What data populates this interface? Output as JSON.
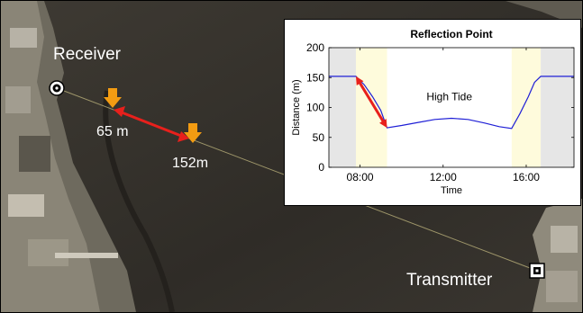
{
  "map": {
    "receiver_label": "Receiver",
    "transmitter_label": "Transmitter",
    "near_distance_label": "65 m",
    "far_distance_label": "152m",
    "arrow_color": "#e8201c",
    "marker_color": "#f39c12"
  },
  "chart_data": {
    "type": "line",
    "title": "Reflection Point",
    "xlabel": "Time",
    "ylabel": "Distance (m)",
    "annotation": "High Tide",
    "xlim": [
      6.5,
      18.3
    ],
    "ylim": [
      0,
      200
    ],
    "x_ticks": [
      8,
      12,
      16
    ],
    "x_tick_labels": [
      "08:00",
      "12:00",
      "16:00"
    ],
    "y_ticks": [
      0,
      50,
      100,
      150,
      200
    ],
    "y_tick_labels": [
      "0",
      "50",
      "100",
      "150",
      "200"
    ],
    "grid": false,
    "line_color": "#1f1fd6",
    "regions": [
      {
        "from": 6.5,
        "to": 7.8,
        "color": "#e6e6e6"
      },
      {
        "from": 7.8,
        "to": 9.3,
        "color": "#fefbdc"
      },
      {
        "from": 15.3,
        "to": 16.7,
        "color": "#fefbdc"
      },
      {
        "from": 16.7,
        "to": 18.3,
        "color": "#e6e6e6"
      }
    ],
    "series": [
      {
        "x": [
          6.5,
          7.8,
          8.2,
          8.6,
          9.0,
          9.3,
          10.0,
          10.8,
          11.6,
          12.4,
          13.2,
          14.0,
          14.7,
          15.3,
          15.7,
          16.1,
          16.4,
          16.7,
          18.3
        ],
        "y": [
          152,
          152,
          138,
          118,
          95,
          66,
          70,
          75,
          80,
          82,
          80,
          74,
          68,
          65,
          90,
          118,
          142,
          152,
          152
        ]
      }
    ],
    "double_arrow": {
      "x1": 7.8,
      "y1": 152,
      "x2": 9.3,
      "y2": 66,
      "color": "#e8201c"
    }
  }
}
